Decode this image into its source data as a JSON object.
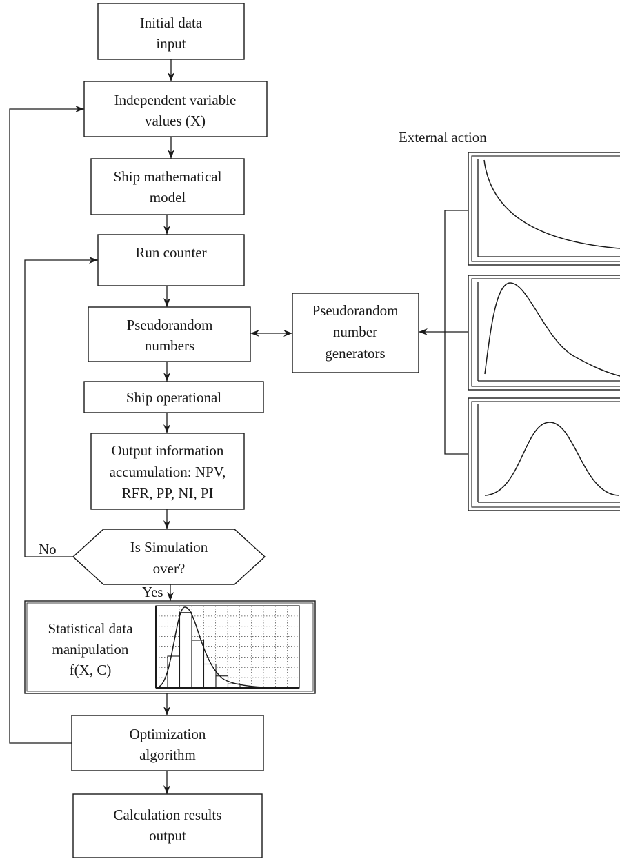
{
  "nodes": {
    "initial_data_input": [
      "Initial data",
      "input"
    ],
    "independent_variable_values": [
      "Independent variable",
      "values (X)"
    ],
    "ship_mathematical_model": [
      "Ship mathematical",
      "model"
    ],
    "run_counter": [
      "Run counter"
    ],
    "pseudorandom_numbers": [
      "Pseudorandom",
      "numbers"
    ],
    "pseudorandom_number_generators": [
      "Pseudorandom",
      "number",
      "generators"
    ],
    "ship_operational": [
      "Ship operational"
    ],
    "output_information_accumulation": [
      "Output information",
      "accumulation: NPV,",
      "RFR, PP, NI, PI"
    ],
    "is_simulation_over": [
      "Is Simulation",
      "over?"
    ],
    "statistical_data_manipulation": [
      "Statistical data",
      "manipulation",
      "f(X, C)"
    ],
    "optimization_algorithm": [
      "Optimization",
      "algorithm"
    ],
    "calculation_results_output": [
      "Calculation results",
      "output"
    ]
  },
  "labels": {
    "external_action": "External action",
    "no": "No",
    "yes": "Yes"
  },
  "distributions": [
    {
      "name": "decaying",
      "shape": "hyperbolic decay"
    },
    {
      "name": "skewed",
      "shape": "right-skewed peak"
    },
    {
      "name": "normal",
      "shape": "bell curve"
    }
  ],
  "histogram": {
    "bars": [
      0.4,
      0.95,
      0.6,
      0.3,
      0.15,
      0.05
    ],
    "curve": "right-skewed density"
  }
}
